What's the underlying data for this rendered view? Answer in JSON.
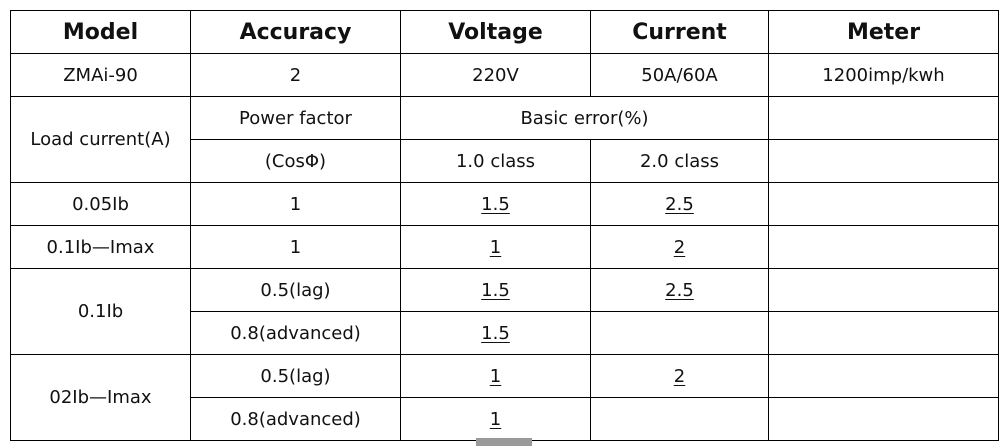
{
  "table": {
    "header": [
      "Model",
      "Accuracy",
      "Voltage",
      "Current",
      "Meter"
    ],
    "rows": [
      [
        "ZMAi-90",
        "2",
        "220V",
        "50A/60A",
        "1200imp/kwh"
      ],
      [
        "Load current(A)",
        "Power factor",
        "Basic error(%)"
      ],
      [
        "(CosΦ)",
        "1.0 class",
        "2.0 class"
      ],
      [
        "0.05Ib",
        "1",
        "1.5",
        "2.5"
      ],
      [
        "0.1Ib—Imax",
        "1",
        "1",
        "2"
      ],
      [
        "0.1Ib",
        "0.5(lag)",
        "1.5",
        "2.5"
      ],
      [
        "0.8(advanced)",
        "1.5"
      ],
      [
        "02Ib—Imax",
        "0.5(lag)",
        "1",
        "2"
      ],
      [
        "0.8(advanced)",
        "1"
      ]
    ]
  }
}
